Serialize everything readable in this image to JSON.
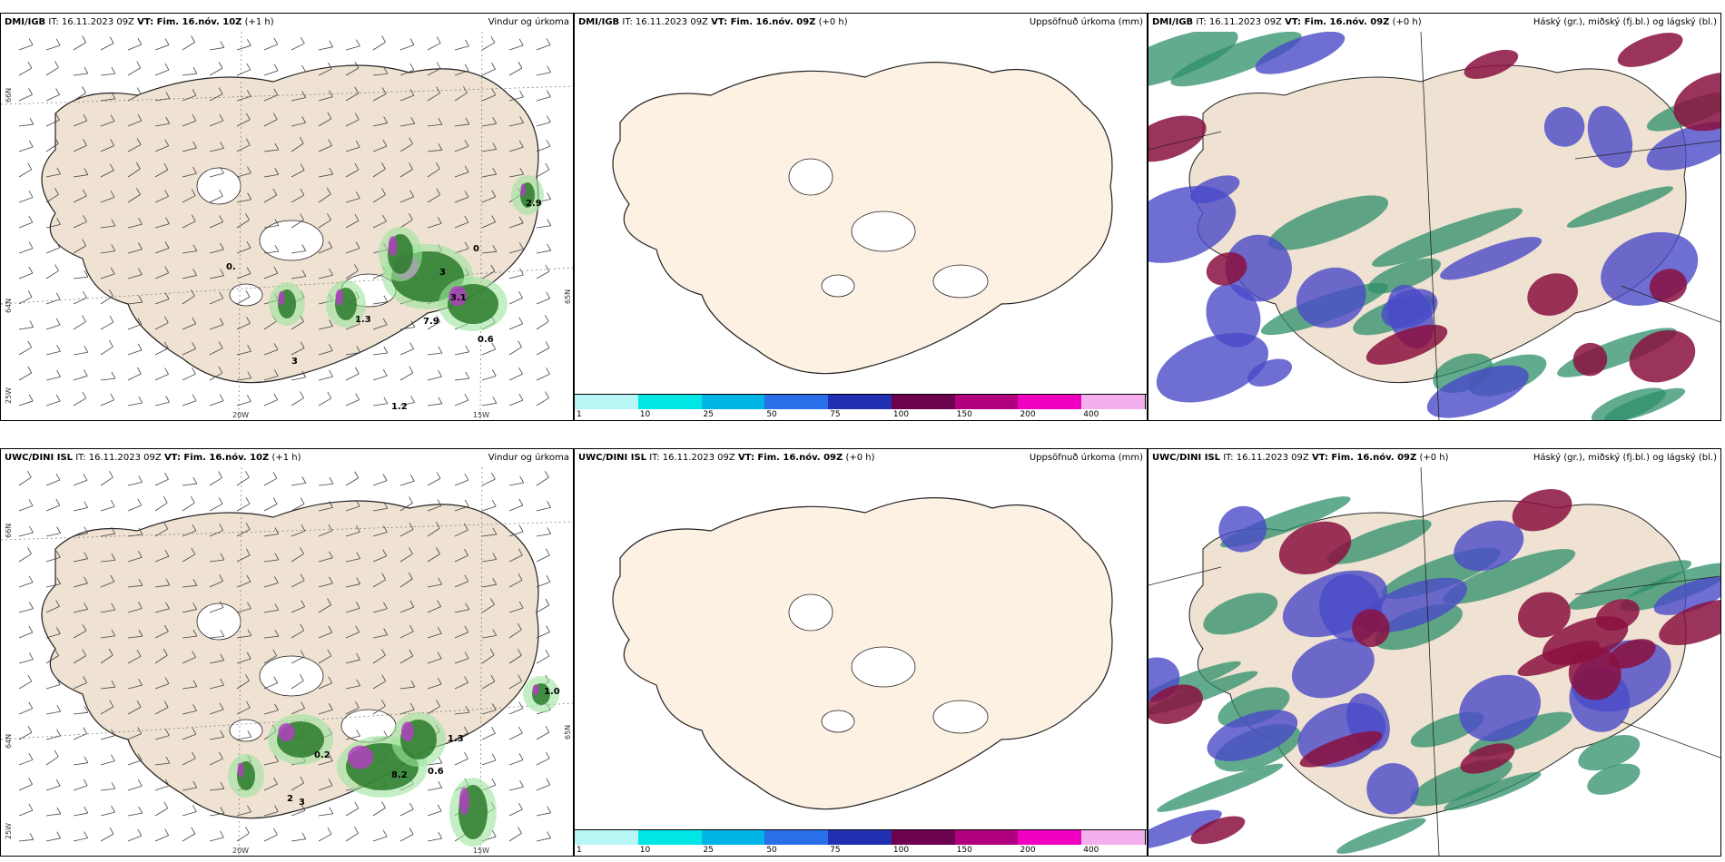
{
  "rows": [
    {
      "model": "DMI/IGB",
      "panels": [
        {
          "it_label": "IT:",
          "it": "16.11.2023 09Z",
          "vt_label": "VT: Fim. 16.nóv. 10Z",
          "lead": "(+1 h)",
          "title": "Vindur og úrkoma"
        },
        {
          "it_label": "IT:",
          "it": "16.11.2023 09Z",
          "vt_label": "VT: Fim. 16.nóv. 09Z",
          "lead": "(+0 h)",
          "title": "Uppsöfnuð úrkoma (mm)"
        },
        {
          "it_label": "IT:",
          "it": "16.11.2023 09Z",
          "vt_label": "VT: Fim. 16.nóv. 09Z",
          "lead": "(+0 h)",
          "title": "Háský (gr.), miðský (fj.bl.) og lágský (bl.)"
        }
      ],
      "precip_labels": [
        "0.",
        "1.3",
        "7.9",
        "3.1",
        "0.6",
        "0",
        "3",
        "1.2",
        "2.9",
        "3"
      ]
    },
    {
      "model": "UWC/DINI ISL",
      "panels": [
        {
          "it_label": "IT:",
          "it": "16.11.2023 09Z",
          "vt_label": "VT: Fim. 16.nóv. 10Z",
          "lead": "(+1 h)",
          "title": "Vindur og úrkoma"
        },
        {
          "it_label": "IT:",
          "it": "16.11.2023 09Z",
          "vt_label": "VT: Fim. 16.nóv. 09Z",
          "lead": "(+0 h)",
          "title": "Uppsöfnuð úrkoma (mm)"
        },
        {
          "it_label": "IT:",
          "it": "16.11.2023 09Z",
          "vt_label": "VT: Fim. 16.nóv. 09Z",
          "lead": "(+0 h)",
          "title": "Háský (gr.), miðský (fj.bl.) og lágský (bl.)"
        }
      ],
      "precip_labels": [
        "0.2",
        "8.2",
        "0.6",
        "3",
        "1.0",
        "1.3",
        "2"
      ]
    }
  ],
  "axis_labels": {
    "lat1": "66N",
    "lat2": "64N",
    "lat3": "65N",
    "lon1": "20W",
    "lon2": "15W",
    "lon3": "25W"
  },
  "colorbar": {
    "ticks": [
      "1",
      "10",
      "25",
      "50",
      "75",
      "100",
      "150",
      "200",
      "400"
    ],
    "colors": [
      "#b8f6f6",
      "#00e6e6",
      "#00b4e6",
      "#2a6ee8",
      "#2030b0",
      "#6e0050",
      "#b0007e",
      "#f000c0",
      "#f4b0ee"
    ]
  },
  "colors": {
    "land": "#efe2d2",
    "land_light": "#fdf1e4",
    "coast": "#222222",
    "high_cloud": "#2e8f6a",
    "mid_cloud": "#4a4ac8",
    "low_cloud": "#8a1040",
    "precip_green": "#2a7a2a",
    "precip_purple": "#b040c0"
  }
}
